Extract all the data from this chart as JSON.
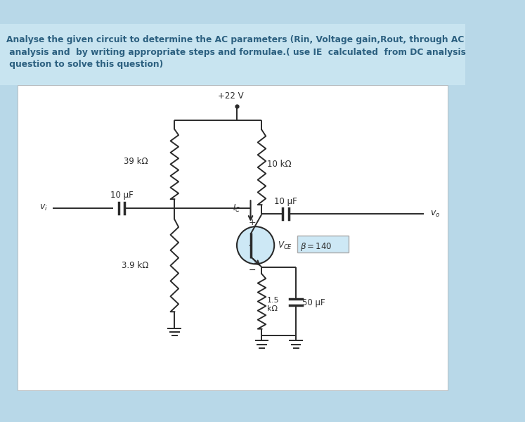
{
  "bg_outer": "#b8d8e8",
  "bg_inner": "#ffffff",
  "bg_text": "#c8e4f0",
  "text_color": "#2c6080",
  "cc": "#2a2a2a",
  "vcc_label": "+22 V",
  "r1_label": "39 kΩ",
  "r2_label": "3.9 kΩ",
  "rc_label": "10 kΩ",
  "re_label": "1.5\nkΩ",
  "cin_label": "10 μF",
  "cout_label": "10 μF",
  "ce_label": "50 μF",
  "beta_label": "β = 140",
  "vce_label": "V_CE",
  "vi_label": "v_i",
  "vo_label": "v_o",
  "ic_label": "I_C",
  "line1": "Analyse the given circuit to determine the AC parameters (Rin, Voltage gain,Rout, through AC",
  "line2": " analysis and  by writing appropriate steps and formulae.( use IE  calculated  from DC analysis",
  "line3": " question to solve this question)"
}
